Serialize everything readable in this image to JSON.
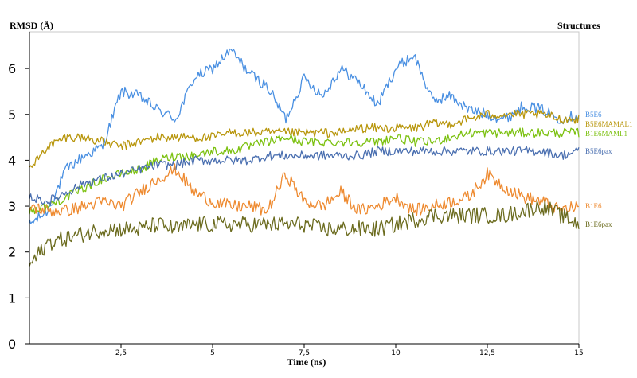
{
  "chart_data": {
    "type": "line",
    "title": "",
    "ylabel": "RMSD (Å)",
    "xlabel": "Time (ns)",
    "legend_title": "Structures",
    "legend_position": "right",
    "xlim": [
      0,
      15
    ],
    "ylim": [
      0,
      6.8
    ],
    "x_ticks": [
      "2,5",
      "5",
      "7,5",
      "10",
      "12,5",
      "15"
    ],
    "x_tick_values": [
      2.5,
      5,
      7.5,
      10,
      12.5,
      15
    ],
    "y_ticks": [
      "0",
      "1",
      "2",
      "3",
      "4",
      "5",
      "6"
    ],
    "y_tick_values": [
      0,
      1,
      2,
      3,
      4,
      5,
      6
    ],
    "grid": false,
    "x": [
      0,
      0.5,
      1,
      1.5,
      2,
      2.5,
      3,
      3.5,
      4,
      4.5,
      5,
      5.5,
      6,
      6.5,
      7,
      7.5,
      8,
      8.5,
      9,
      9.5,
      10,
      10.5,
      11,
      11.5,
      12,
      12.5,
      13,
      13.5,
      14,
      14.5,
      15
    ],
    "series": [
      {
        "name": "B5E6",
        "color": "#4a90e2",
        "noise": 0.12,
        "values": [
          2.6,
          2.9,
          3.8,
          4.1,
          4.3,
          5.5,
          5.4,
          5.1,
          4.9,
          5.8,
          6.0,
          6.4,
          5.9,
          5.6,
          4.9,
          5.8,
          5.4,
          6.0,
          5.7,
          5.2,
          6.0,
          6.3,
          5.3,
          5.4,
          5.1,
          5.0,
          4.9,
          5.2,
          5.1,
          4.9,
          5.0
        ]
      },
      {
        "name": "B5E6MAMAL1",
        "color": "#b8960c",
        "noise": 0.1,
        "values": [
          3.8,
          4.3,
          4.5,
          4.5,
          4.4,
          4.3,
          4.4,
          4.5,
          4.5,
          4.5,
          4.5,
          4.6,
          4.6,
          4.6,
          4.6,
          4.6,
          4.6,
          4.6,
          4.7,
          4.7,
          4.7,
          4.7,
          4.8,
          4.8,
          4.9,
          5.0,
          5.0,
          5.0,
          5.0,
          4.9,
          4.9
        ]
      },
      {
        "name": "B1E6MAML1",
        "color": "#7cc110",
        "noise": 0.1,
        "values": [
          2.9,
          3.0,
          3.2,
          3.4,
          3.6,
          3.7,
          3.8,
          4.0,
          4.1,
          4.1,
          4.2,
          4.2,
          4.3,
          4.4,
          4.5,
          4.4,
          4.4,
          4.4,
          4.4,
          4.4,
          4.5,
          4.4,
          4.4,
          4.5,
          4.6,
          4.6,
          4.6,
          4.6,
          4.6,
          4.6,
          4.6
        ]
      },
      {
        "name": "B5E6pax",
        "color": "#4a6fb0",
        "noise": 0.1,
        "values": [
          3.2,
          3.1,
          3.3,
          3.5,
          3.6,
          3.7,
          3.8,
          3.9,
          3.9,
          4.0,
          4.0,
          4.0,
          4.0,
          4.1,
          4.1,
          4.1,
          4.1,
          4.1,
          4.1,
          4.2,
          4.2,
          4.2,
          4.2,
          4.2,
          4.2,
          4.2,
          4.2,
          4.2,
          4.2,
          4.1,
          4.2
        ]
      },
      {
        "name": "B1E6",
        "color": "#ee8a30",
        "noise": 0.14,
        "values": [
          3.0,
          2.9,
          2.9,
          3.0,
          3.1,
          3.0,
          3.3,
          3.6,
          3.8,
          3.3,
          3.1,
          3.0,
          3.0,
          2.9,
          3.7,
          3.1,
          3.0,
          3.3,
          2.9,
          3.0,
          3.2,
          2.9,
          3.0,
          3.1,
          3.2,
          3.7,
          3.4,
          3.2,
          3.1,
          2.9,
          3.0
        ]
      },
      {
        "name": "B1E6pax",
        "color": "#6b6b1e",
        "noise": 0.18,
        "values": [
          1.7,
          2.2,
          2.3,
          2.4,
          2.5,
          2.5,
          2.5,
          2.6,
          2.5,
          2.6,
          2.6,
          2.6,
          2.6,
          2.6,
          2.6,
          2.6,
          2.5,
          2.5,
          2.5,
          2.5,
          2.6,
          2.7,
          2.8,
          2.8,
          2.8,
          2.8,
          2.8,
          2.9,
          3.0,
          2.8,
          2.6
        ]
      }
    ]
  }
}
